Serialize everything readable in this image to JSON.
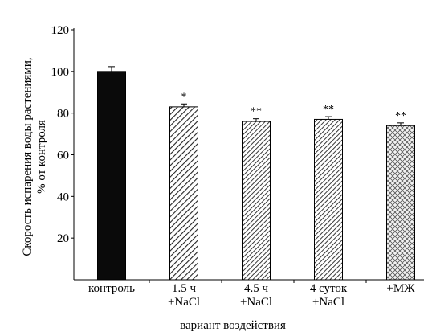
{
  "chart_data": {
    "type": "bar",
    "categories": [
      [
        "контроль"
      ],
      [
        "1.5 ч",
        "+NaCl"
      ],
      [
        "4.5 ч",
        "+NaCl"
      ],
      [
        "4 суток",
        "+NaCl"
      ],
      [
        "+МЖ"
      ]
    ],
    "values": [
      100,
      83,
      76,
      77,
      74
    ],
    "errors": [
      2.3,
      1.4,
      1.3,
      1.3,
      1.3
    ],
    "significance": [
      "",
      "*",
      "**",
      "**",
      "**"
    ],
    "fills": [
      "solid-black",
      "diagonal-hatch",
      "diagonal-hatch-dense",
      "diagonal-hatch-dense",
      "cross-hatch"
    ],
    "ylabel_lines": [
      "Скорость испарения воды растениями,",
      "% от контроля"
    ],
    "xlabel": "вариант воздействия",
    "ylim": [
      0,
      120
    ],
    "yticks": [
      20,
      40,
      60,
      80,
      100,
      120
    ],
    "grid": false,
    "colors": {
      "bar_solid": "#0a0a0a",
      "hatch": "#222222",
      "axis": "#000000"
    }
  }
}
